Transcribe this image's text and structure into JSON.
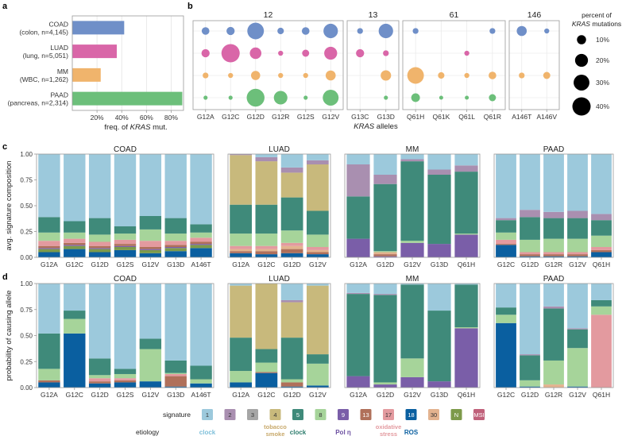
{
  "panel_letters": {
    "a": "a",
    "b": "b",
    "c": "c",
    "d": "d"
  },
  "legend": {
    "signature_title": "signature",
    "etiology_title": "etiology",
    "signatures": [
      {
        "id": "1",
        "color": "#9cc9dc"
      },
      {
        "id": "2",
        "color": "#a98fb0"
      },
      {
        "id": "3",
        "color": "#a6a6a6"
      },
      {
        "id": "4",
        "color": "#c8b97c"
      },
      {
        "id": "5",
        "color": "#3f8a7a"
      },
      {
        "id": "8",
        "color": "#a6d49a"
      },
      {
        "id": "9",
        "color": "#7a5ea8"
      },
      {
        "id": "13",
        "color": "#b0705a"
      },
      {
        "id": "17",
        "color": "#e39a9f"
      },
      {
        "id": "18",
        "color": "#0a5fa0"
      },
      {
        "id": "30",
        "color": "#e3b38f"
      },
      {
        "id": "N",
        "color": "#7d9a4a"
      },
      {
        "id": "MSI",
        "color": "#c0607a"
      }
    ],
    "etiologies": [
      {
        "label": "clock",
        "color": "#7fc0da",
        "sig": "1"
      },
      {
        "label": "tobacco smoke",
        "line1": "tobacco",
        "line2": "smoke",
        "color": "#c8a96b",
        "sig": "4"
      },
      {
        "label": "clock",
        "color": "#2e7d6e",
        "sig": "5"
      },
      {
        "label": "Pol η",
        "color": "#6b4fa0",
        "sig": "9"
      },
      {
        "label": "oxidative stress",
        "line1": "oxidative",
        "line2": "stress",
        "color": "#e39a9f",
        "sig": "17"
      },
      {
        "label": "ROS",
        "color": "#0a5fa0",
        "sig": "18"
      }
    ]
  },
  "chart_data": [
    {
      "panel": "a",
      "type": "bar",
      "orientation": "horizontal",
      "categories": [
        {
          "line1": "COAD",
          "line2": "(colon, n=4,145)",
          "color": "#6f8fc8"
        },
        {
          "line1": "LUAD",
          "line2": "(lung, n=5,051)",
          "color": "#d966a8"
        },
        {
          "line1": "MM",
          "line2": "(WBC, n=1,262)",
          "color": "#f0b46c"
        },
        {
          "line1": "PAAD",
          "line2": "(pancreas, n=2,314)",
          "color": "#6cbf7a"
        }
      ],
      "values": [
        0.42,
        0.36,
        0.23,
        0.89
      ],
      "xlim": [
        0,
        0.9
      ],
      "xticks": [
        0.2,
        0.4,
        0.6,
        0.8
      ],
      "xticklabels": [
        "20%",
        "40%",
        "60%",
        "80%"
      ],
      "xlabel_pre": "freq. of ",
      "xlabel_em": "KRAS",
      "xlabel_post": " mut."
    },
    {
      "panel": "b",
      "type": "scatter",
      "groups": [
        {
          "codon": "12",
          "alleles": [
            "G12A",
            "G12C",
            "G12D",
            "G12R",
            "G12S",
            "G12V"
          ]
        },
        {
          "codon": "13",
          "alleles": [
            "G13C",
            "G13D"
          ]
        },
        {
          "codon": "61",
          "alleles": [
            "Q61H",
            "Q61K",
            "Q61L",
            "Q61R"
          ]
        },
        {
          "codon": "146",
          "alleles": [
            "A146T",
            "A146V"
          ]
        }
      ],
      "cancers": [
        {
          "name": "COAD",
          "color": "#6f8fc8"
        },
        {
          "name": "LUAD",
          "color": "#d966a8"
        },
        {
          "name": "MM",
          "color": "#f0b46c"
        },
        {
          "name": "PAAD",
          "color": "#6cbf7a"
        }
      ],
      "percent": {
        "COAD": [
          7,
          8,
          33,
          5,
          7,
          25,
          4,
          25,
          4,
          0,
          0,
          4,
          12,
          3
        ],
        "LUAD": [
          8,
          40,
          16,
          3,
          6,
          20,
          8,
          4,
          0,
          0,
          3,
          0,
          0,
          0
        ],
        "MM": [
          4,
          3,
          10,
          3,
          3,
          12,
          0,
          13,
          33,
          5,
          3,
          7,
          4,
          6
        ],
        "PAAD": [
          2,
          2,
          38,
          22,
          2,
          30,
          0,
          2,
          9,
          1,
          1,
          6,
          0,
          0
        ]
      },
      "xlabel_em": "KRAS",
      "xlabel_post": " alleles",
      "size_legend": {
        "title_line1": "percent of",
        "title_em": "KRAS",
        "title_post": " mutations",
        "values": [
          10,
          20,
          30,
          40
        ],
        "labels": [
          "10%",
          "20%",
          "30%",
          "40%"
        ]
      }
    },
    {
      "panel": "c",
      "type": "bar",
      "stacked": true,
      "ylabel": "avg. signature composition",
      "ylim": [
        0,
        1
      ],
      "yticks": [
        "0.00",
        "0.25",
        "0.50",
        "0.75",
        "1.00"
      ],
      "order": [
        "18",
        "N",
        "9",
        "13",
        "30",
        "17",
        "8",
        "5",
        "3",
        "4",
        "2",
        "MSI",
        "1"
      ],
      "subplots": [
        {
          "title": "COAD",
          "bars": [
            {
              "label": "G12A",
              "comp": {
                "18": 0.05,
                "N": 0.03,
                "9": 0.01,
                "13": 0.02,
                "17": 0.05,
                "8": 0.08,
                "5": 0.15,
                "1": 0.61
              }
            },
            {
              "label": "G12C",
              "comp": {
                "18": 0.08,
                "N": 0.03,
                "9": 0.01,
                "13": 0.02,
                "17": 0.04,
                "8": 0.06,
                "5": 0.11,
                "1": 0.65
              }
            },
            {
              "label": "G12D",
              "comp": {
                "18": 0.05,
                "N": 0.03,
                "9": 0.01,
                "13": 0.02,
                "17": 0.04,
                "8": 0.07,
                "5": 0.16,
                "1": 0.62
              }
            },
            {
              "label": "G12S",
              "comp": {
                "18": 0.07,
                "N": 0.03,
                "9": 0.01,
                "13": 0.02,
                "17": 0.04,
                "8": 0.06,
                "5": 0.07,
                "1": 0.7
              }
            },
            {
              "label": "G12V",
              "comp": {
                "18": 0.04,
                "N": 0.03,
                "9": 0.01,
                "13": 0.02,
                "17": 0.06,
                "8": 0.11,
                "5": 0.13,
                "1": 0.6
              }
            },
            {
              "label": "G13D",
              "comp": {
                "18": 0.06,
                "N": 0.03,
                "9": 0.01,
                "13": 0.02,
                "17": 0.04,
                "8": 0.07,
                "5": 0.15,
                "1": 0.62
              }
            },
            {
              "label": "A146T",
              "comp": {
                "18": 0.09,
                "N": 0.03,
                "9": 0.01,
                "13": 0.02,
                "17": 0.04,
                "8": 0.05,
                "5": 0.08,
                "1": 0.68
              }
            }
          ]
        },
        {
          "title": "LUAD",
          "bars": [
            {
              "label": "G12A",
              "comp": {
                "18": 0.04,
                "13": 0.02,
                "30": 0.02,
                "17": 0.03,
                "8": 0.12,
                "5": 0.28,
                "4": 0.48,
                "2": 0.01
              }
            },
            {
              "label": "G12C",
              "comp": {
                "18": 0.03,
                "13": 0.03,
                "30": 0.02,
                "17": 0.03,
                "8": 0.12,
                "5": 0.28,
                "4": 0.42,
                "2": 0.04,
                "1": 0.03
              }
            },
            {
              "label": "G12D",
              "comp": {
                "18": 0.04,
                "13": 0.04,
                "30": 0.03,
                "17": 0.03,
                "8": 0.12,
                "5": 0.32,
                "4": 0.24,
                "2": 0.05,
                "1": 0.13
              }
            },
            {
              "label": "G12V",
              "comp": {
                "18": 0.03,
                "13": 0.02,
                "30": 0.02,
                "17": 0.03,
                "8": 0.12,
                "5": 0.23,
                "4": 0.45,
                "2": 0.04,
                "1": 0.06
              }
            }
          ]
        },
        {
          "title": "MM",
          "bars": [
            {
              "label": "G12A",
              "comp": {
                "9": 0.18,
                "5": 0.41,
                "2": 0.31,
                "1": 0.1
              }
            },
            {
              "label": "G12D",
              "comp": {
                "9": 0.01,
                "13": 0.02,
                "30": 0.02,
                "8": 0.01,
                "5": 0.65,
                "2": 0.09,
                "1": 0.2
              }
            },
            {
              "label": "G12V",
              "comp": {
                "9": 0.14,
                "8": 0.02,
                "5": 0.77,
                "2": 0.02,
                "1": 0.05
              }
            },
            {
              "label": "G13D",
              "comp": {
                "9": 0.13,
                "5": 0.67,
                "2": 0.05,
                "1": 0.15
              }
            },
            {
              "label": "Q61H",
              "comp": {
                "9": 0.22,
                "8": 0.01,
                "5": 0.6,
                "2": 0.06,
                "1": 0.11
              }
            }
          ]
        },
        {
          "title": "PAAD",
          "bars": [
            {
              "label": "G12C",
              "comp": {
                "18": 0.12,
                "13": 0.01,
                "17": 0.04,
                "8": 0.07,
                "5": 0.12,
                "2": 0.02,
                "1": 0.62
              }
            },
            {
              "label": "G12D",
              "comp": {
                "18": 0.01,
                "13": 0.02,
                "17": 0.02,
                "8": 0.12,
                "5": 0.22,
                "2": 0.07,
                "1": 0.54
              }
            },
            {
              "label": "G12R",
              "comp": {
                "18": 0.01,
                "13": 0.02,
                "17": 0.02,
                "8": 0.13,
                "5": 0.2,
                "2": 0.06,
                "1": 0.56
              }
            },
            {
              "label": "G12V",
              "comp": {
                "18": 0.01,
                "13": 0.02,
                "17": 0.02,
                "8": 0.13,
                "5": 0.2,
                "2": 0.07,
                "1": 0.55
              }
            },
            {
              "label": "Q61H",
              "comp": {
                "18": 0.05,
                "13": 0.02,
                "17": 0.03,
                "8": 0.11,
                "5": 0.15,
                "2": 0.06,
                "1": 0.58
              }
            }
          ]
        }
      ]
    },
    {
      "panel": "d",
      "type": "bar",
      "stacked": true,
      "ylabel": "probability of causing allele",
      "ylim": [
        0,
        1
      ],
      "yticks": [
        "0.00",
        "0.25",
        "0.50",
        "0.75",
        "1.00"
      ],
      "order": [
        "18",
        "N",
        "9",
        "13",
        "30",
        "17",
        "8",
        "5",
        "3",
        "4",
        "2",
        "MSI",
        "1"
      ],
      "subplots": [
        {
          "title": "COAD",
          "bars": [
            {
              "label": "G12A",
              "comp": {
                "18": 0.05,
                "13": 0.02,
                "8": 0.11,
                "5": 0.34,
                "1": 0.48
              }
            },
            {
              "label": "G12C",
              "comp": {
                "18": 0.52,
                "8": 0.14,
                "5": 0.08,
                "1": 0.26
              }
            },
            {
              "label": "G12D",
              "comp": {
                "18": 0.04,
                "13": 0.02,
                "17": 0.03,
                "8": 0.03,
                "5": 0.16,
                "1": 0.72
              }
            },
            {
              "label": "G12S",
              "comp": {
                "18": 0.05,
                "13": 0.02,
                "17": 0.02,
                "8": 0.04,
                "5": 0.05,
                "1": 0.82
              }
            },
            {
              "label": "G12V",
              "comp": {
                "18": 0.06,
                "8": 0.31,
                "5": 0.1,
                "1": 0.53
              }
            },
            {
              "label": "G13D",
              "comp": {
                "18": 0.01,
                "13": 0.1,
                "17": 0.02,
                "8": 0.01,
                "5": 0.12,
                "1": 0.74
              }
            },
            {
              "label": "A146T",
              "comp": {
                "18": 0.04,
                "8": 0.04,
                "5": 0.13,
                "1": 0.79
              }
            }
          ]
        },
        {
          "title": "LUAD",
          "bars": [
            {
              "label": "G12A",
              "comp": {
                "18": 0.05,
                "8": 0.11,
                "5": 0.32,
                "4": 0.5,
                "1": 0.02
              }
            },
            {
              "label": "G12C",
              "comp": {
                "18": 0.14,
                "13": 0.01,
                "8": 0.09,
                "5": 0.13,
                "4": 0.63
              }
            },
            {
              "label": "G12D",
              "comp": {
                "18": 0.01,
                "13": 0.04,
                "8": 0.03,
                "5": 0.4,
                "4": 0.34,
                "2": 0.02,
                "1": 0.16
              }
            },
            {
              "label": "G12V",
              "comp": {
                "18": 0.02,
                "8": 0.21,
                "5": 0.09,
                "4": 0.66,
                "1": 0.02
              }
            }
          ]
        },
        {
          "title": "MM",
          "bars": [
            {
              "label": "G12A",
              "comp": {
                "9": 0.11,
                "5": 0.79,
                "2": 0.01,
                "1": 0.09
              }
            },
            {
              "label": "G12D",
              "comp": {
                "9": 0.03,
                "8": 0.02,
                "5": 0.84,
                "2": 0.01,
                "1": 0.1
              }
            },
            {
              "label": "G12V",
              "comp": {
                "9": 0.1,
                "8": 0.18,
                "5": 0.71,
                "1": 0.01
              }
            },
            {
              "label": "G13D",
              "comp": {
                "9": 0.06,
                "5": 0.68,
                "1": 0.26
              }
            },
            {
              "label": "Q61H",
              "comp": {
                "9": 0.57,
                "8": 0.01,
                "5": 0.41,
                "1": 0.01
              }
            }
          ]
        },
        {
          "title": "PAAD",
          "bars": [
            {
              "label": "G12C",
              "comp": {
                "18": 0.62,
                "8": 0.08,
                "5": 0.07,
                "1": 0.23
              }
            },
            {
              "label": "G12D",
              "comp": {
                "18": 0.01,
                "8": 0.06,
                "5": 0.24,
                "2": 0.01,
                "1": 0.68
              }
            },
            {
              "label": "G12R",
              "comp": {
                "30": 0.03,
                "8": 0.23,
                "5": 0.5,
                "2": 0.02,
                "1": 0.22
              }
            },
            {
              "label": "G12V",
              "comp": {
                "18": 0.01,
                "8": 0.37,
                "5": 0.18,
                "2": 0.01,
                "1": 0.43
              }
            },
            {
              "label": "Q61H",
              "comp": {
                "17": 0.7,
                "8": 0.08,
                "5": 0.06,
                "1": 0.16
              }
            }
          ]
        }
      ]
    }
  ]
}
